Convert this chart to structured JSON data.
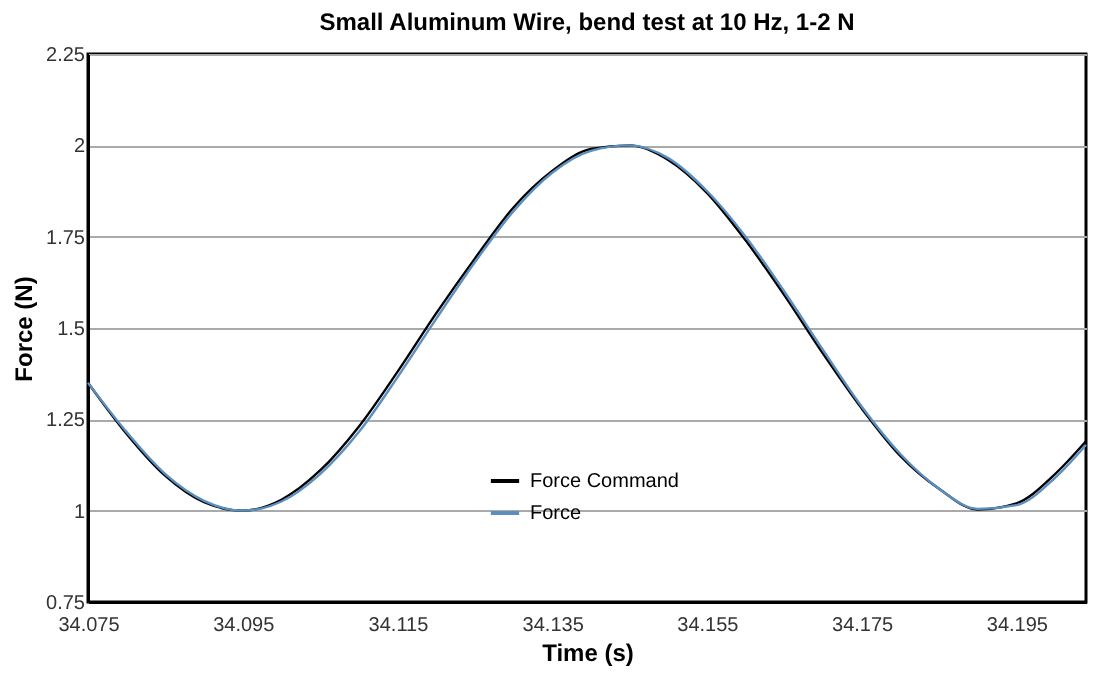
{
  "chart_data": {
    "type": "line",
    "title": "Small Aluminum Wire, bend test at 10 Hz, 1-2 N",
    "xlabel": "Time (s)",
    "ylabel": "Force (N)",
    "x": [
      34.075,
      34.08,
      34.085,
      34.09,
      34.095,
      34.1,
      34.105,
      34.11,
      34.115,
      34.12,
      34.125,
      34.13,
      34.135,
      34.14,
      34.145,
      34.15,
      34.155,
      34.16,
      34.165,
      34.17,
      34.175,
      34.18,
      34.185,
      34.19,
      34.195,
      34.2,
      34.204
    ],
    "series": [
      {
        "name": "Force Command",
        "color": "#000000",
        "values": [
          1.35,
          1.21,
          1.095,
          1.023,
          1.0,
          1.03,
          1.11,
          1.23,
          1.38,
          1.54,
          1.69,
          1.83,
          1.93,
          1.99,
          2.0,
          1.96,
          1.87,
          1.74,
          1.59,
          1.43,
          1.28,
          1.15,
          1.06,
          1.003,
          1.02,
          1.1,
          1.19
        ]
      },
      {
        "name": "Force",
        "color": "#5b8fc0",
        "values": [
          1.35,
          1.215,
          1.1,
          1.027,
          1.0,
          1.025,
          1.1,
          1.215,
          1.365,
          1.525,
          1.68,
          1.82,
          1.925,
          1.985,
          2.0,
          1.965,
          1.875,
          1.75,
          1.6,
          1.44,
          1.285,
          1.155,
          1.06,
          1.005,
          1.015,
          1.09,
          1.18
        ]
      }
    ],
    "xlim": [
      34.075,
      34.204
    ],
    "xticks": [
      34.075,
      34.095,
      34.115,
      34.135,
      34.155,
      34.175,
      34.195
    ],
    "ylim": [
      0.75,
      2.25
    ],
    "yticks": [
      0.75,
      1,
      1.25,
      1.5,
      1.75,
      2,
      2.25
    ],
    "grid": "y",
    "legend": "bottom",
    "marker": "none",
    "line_style": "solid"
  }
}
